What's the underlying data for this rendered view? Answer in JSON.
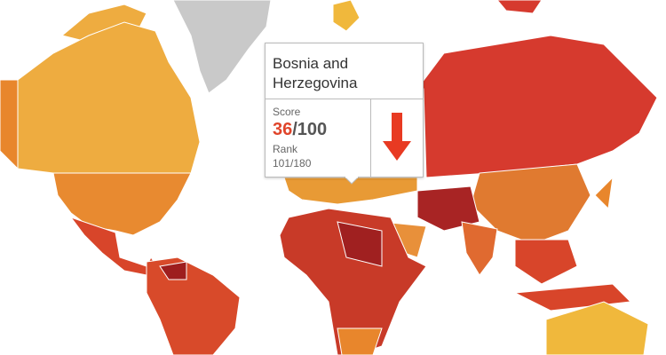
{
  "tooltip": {
    "country": "Bosnia and Herzegovina",
    "score_label": "Score",
    "score": "36",
    "score_max": "/100",
    "rank_label": "Rank",
    "rank": "101/180"
  }
}
